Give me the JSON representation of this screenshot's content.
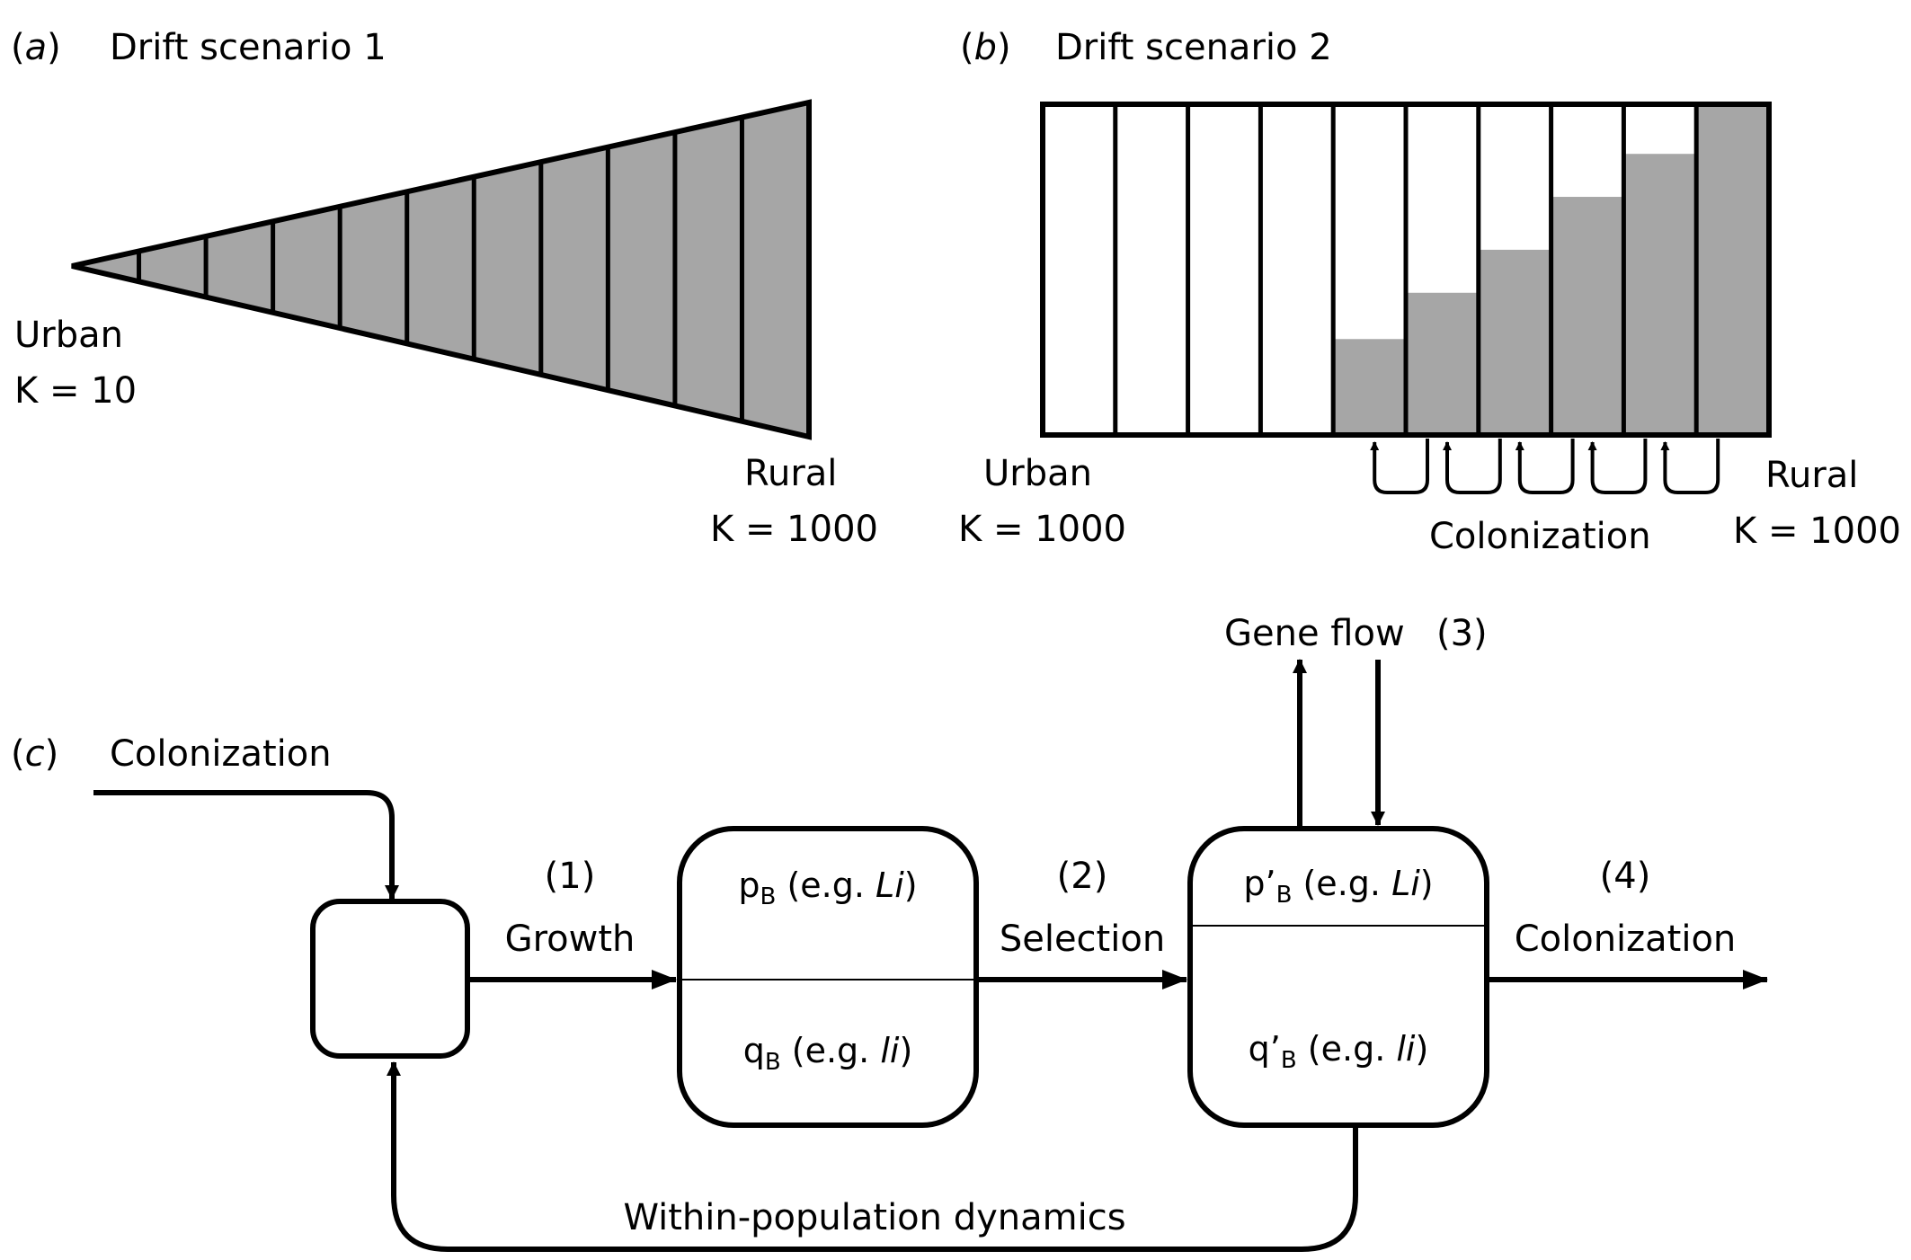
{
  "panel_a": {
    "tag": "a",
    "title": "Drift scenario 1",
    "urban_label": "Urban",
    "urban_k": "K = 10",
    "rural_label": "Rural",
    "rural_k": "K = 1000",
    "fill_color": "#a6a6a6",
    "segment_count": 11
  },
  "panel_b": {
    "tag": "b",
    "title": "Drift scenario 2",
    "urban_label": "Urban",
    "urban_k": "K = 1000",
    "rural_label": "Rural",
    "rural_k": "K = 1000",
    "colonization_label": "Colonization",
    "fill_color": "#a6a6a6",
    "bar_fill_levels": [
      0,
      0,
      0,
      0,
      0.29,
      0.43,
      0.56,
      0.72,
      0.85,
      1.0
    ]
  },
  "panel_c": {
    "tag": "c",
    "colonization_in": "Colonization",
    "step1_num": "(1)",
    "step1_label": "Growth",
    "step2_num": "(2)",
    "step2_label": "Selection",
    "gene_flow_label": "Gene flow",
    "step3_num": "(3)",
    "step4_num": "(4)",
    "step4_label": "Colonization",
    "within_label": "Within-population dynamics",
    "box2_top": {
      "sym": "p",
      "sub": "B",
      "pre": " (e.g. ",
      "ital": "Li",
      "post": ")"
    },
    "box2_bottom": {
      "sym": "q",
      "sub": "B",
      "pre": " (e.g. ",
      "ital": "li",
      "post": ")"
    },
    "box3_top": {
      "sym": "p’",
      "sub": "B",
      "pre": " (e.g. ",
      "ital": "Li",
      "post": ")"
    },
    "box3_bottom": {
      "sym": "q’",
      "sub": "B",
      "pre": " (e.g. ",
      "ital": "li",
      "post": ")"
    }
  }
}
